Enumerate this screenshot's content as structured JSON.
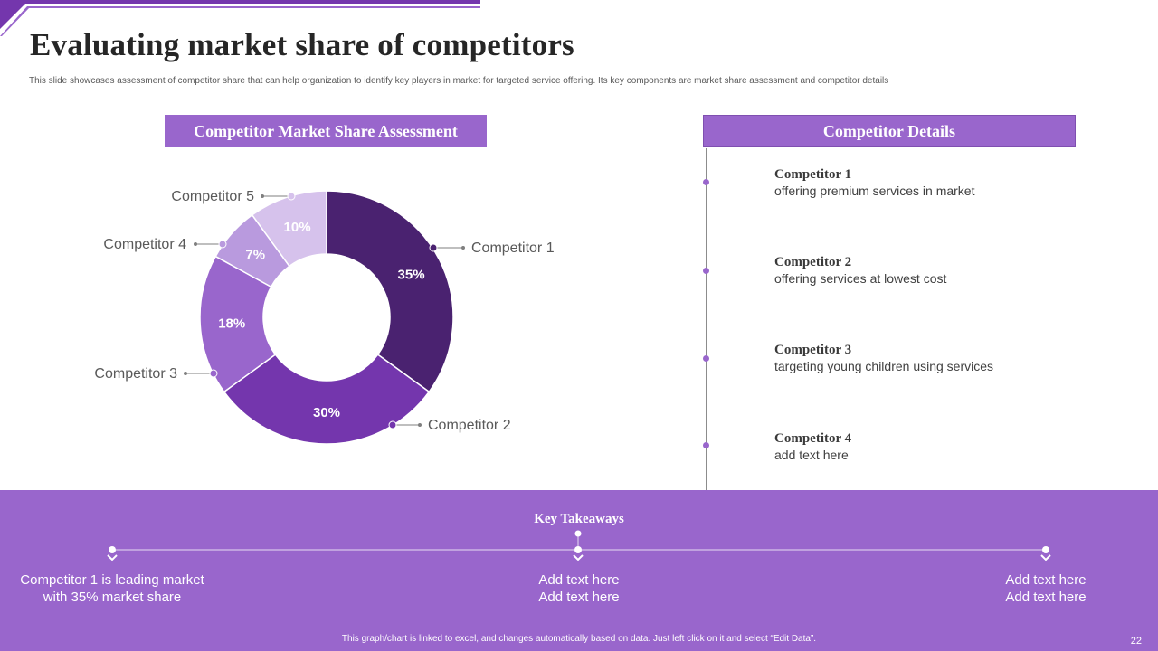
{
  "slide": {
    "title": "Evaluating market share of competitors",
    "subtitle": "This slide showcases assessment of competitor share that can help organization to identify key players in market for targeted service offering. Its key components are market share assessment and competitor details",
    "page_number": "22",
    "footnote": "This graph/chart is linked to excel, and changes automatically based on data. Just left click on it and select “Edit Data”."
  },
  "left_panel": {
    "header": "Competitor Market Share Assessment"
  },
  "right_panel": {
    "header": "Competitor Details",
    "competitors": [
      {
        "name": "Competitor 1",
        "desc": "offering premium services in market"
      },
      {
        "name": "Competitor 2",
        "desc": "offering services at lowest cost"
      },
      {
        "name": "Competitor 3",
        "desc": "targeting young children using services"
      },
      {
        "name": "Competitor 4",
        "desc": "add text here"
      }
    ]
  },
  "takeaways": {
    "title": "Key Takeaways",
    "items": [
      {
        "line1": "Competitor 1 is leading market",
        "line2": "with 35% market share"
      },
      {
        "line1": "Add text here",
        "line2": "Add text here"
      },
      {
        "line1": "Add text here",
        "line2": "Add text here"
      }
    ]
  },
  "colors": {
    "accent": "#9966cc",
    "series": [
      "#4a2270",
      "#7436ad",
      "#9966cc",
      "#b99ade",
      "#d6c2ec"
    ]
  },
  "chart_data": {
    "type": "pie",
    "variant": "donut",
    "title": "",
    "categories": [
      "Competitor 1",
      "Competitor 2",
      "Competitor 3",
      "Competitor 4",
      "Competitor 5"
    ],
    "values": [
      35,
      30,
      18,
      7,
      10
    ],
    "data_labels": [
      "35%",
      "30%",
      "18%",
      "7%",
      "10%"
    ],
    "legend": "callout labels"
  }
}
